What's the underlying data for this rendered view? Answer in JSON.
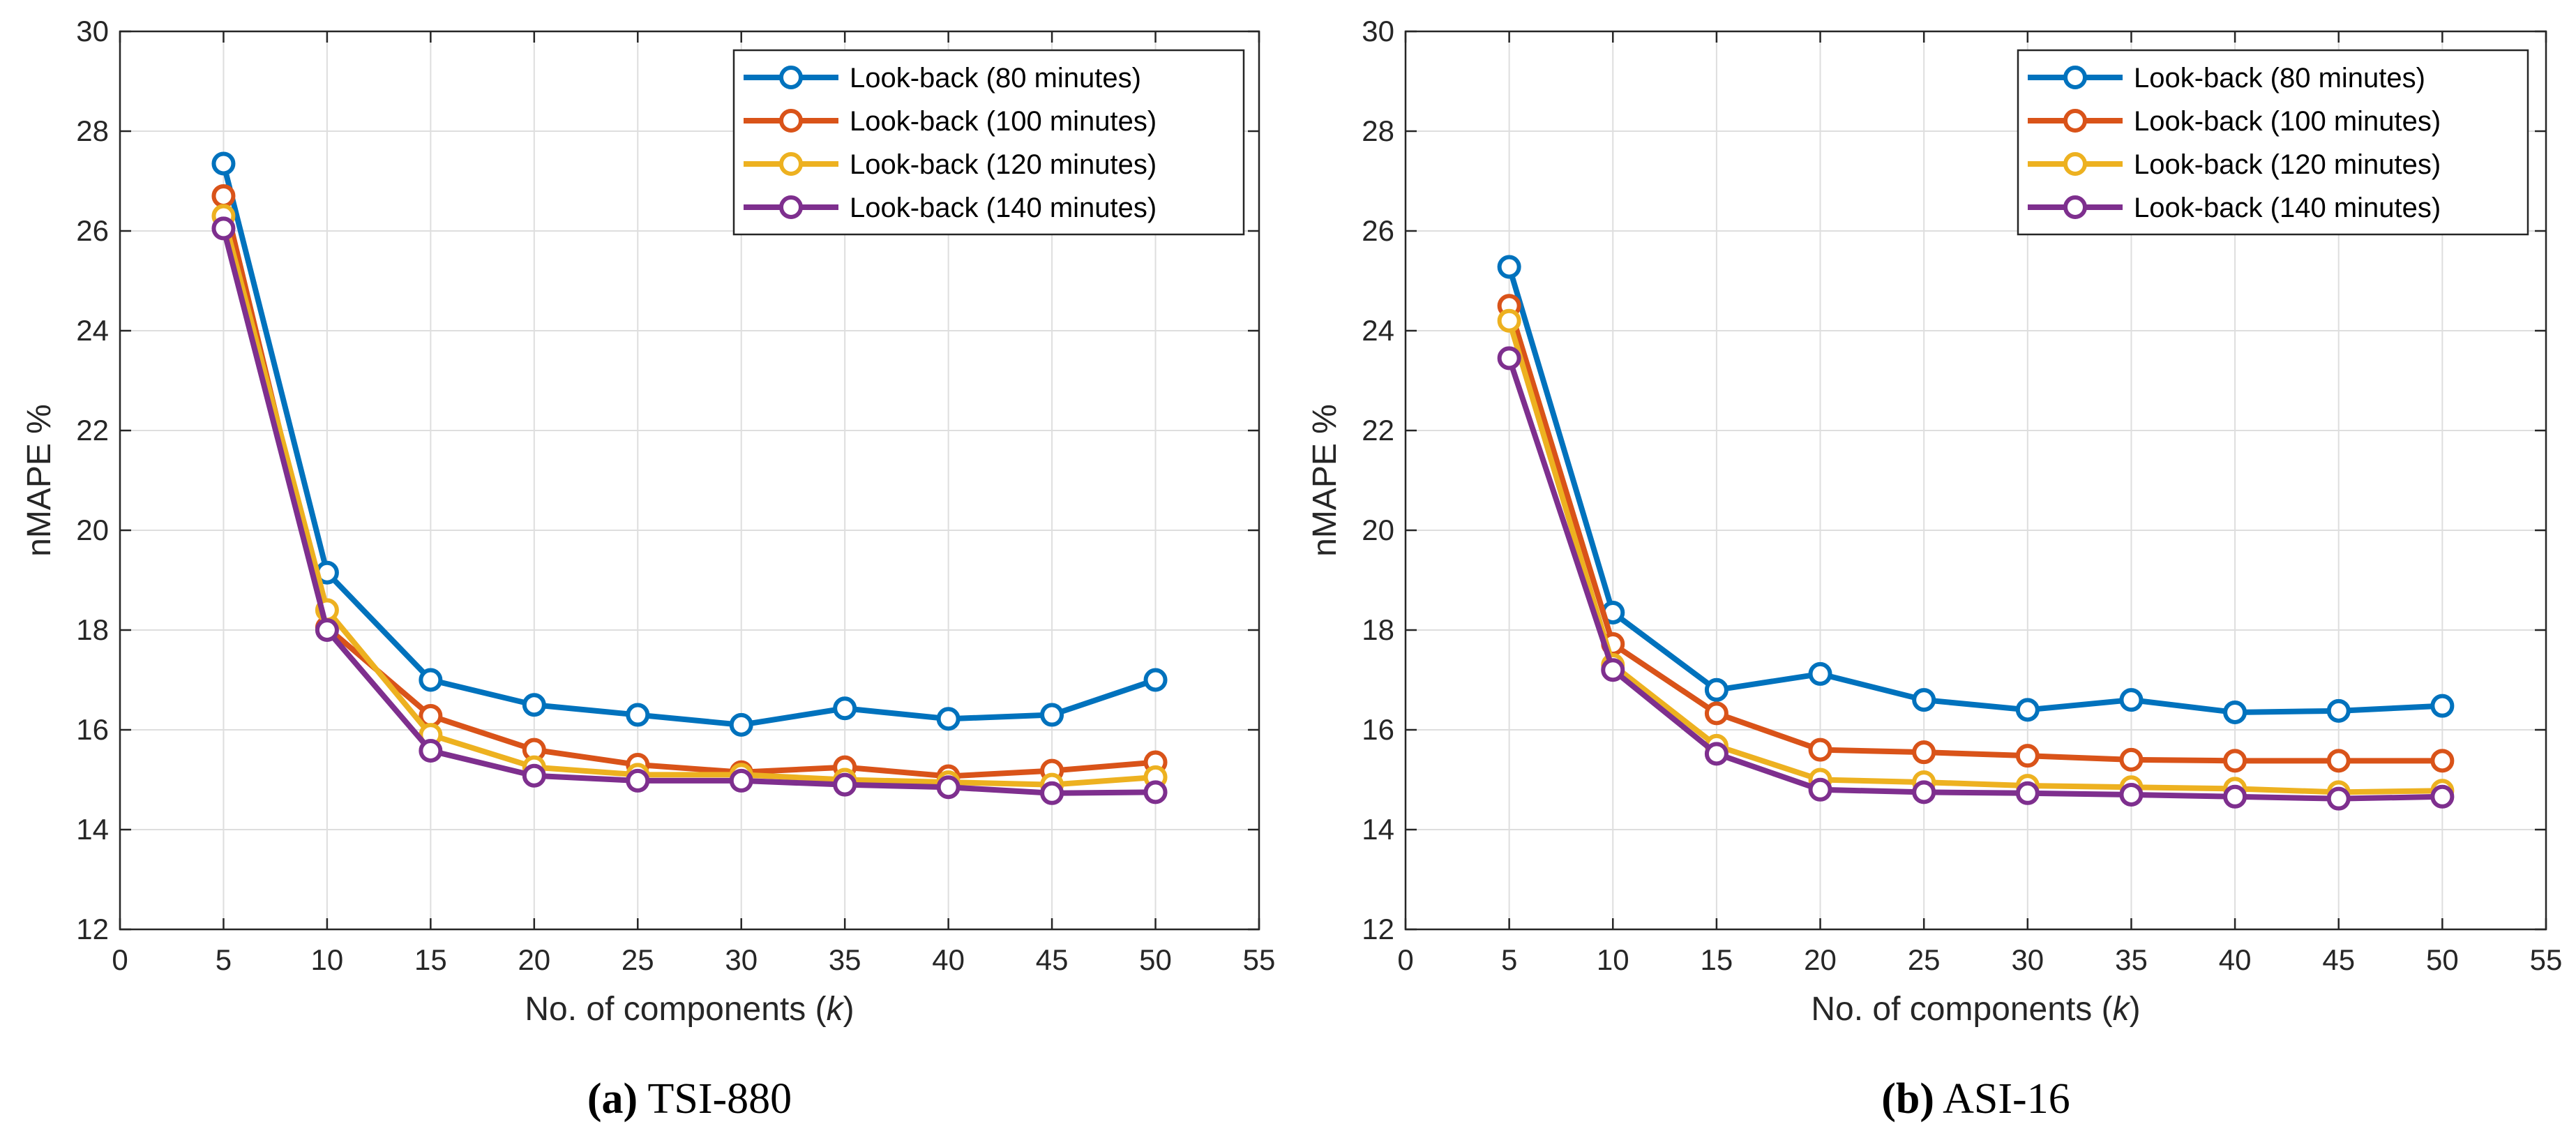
{
  "series_colors": [
    "#0072BD",
    "#D95319",
    "#EDB120",
    "#7E2F8E"
  ],
  "chart_data": [
    {
      "type": "line",
      "panel_label": "(a)",
      "panel_name": "TSI-880",
      "xlabel_prefix": "No. of components (",
      "xlabel_var": "k",
      "xlabel_suffix": ")",
      "ylabel": "nMAPE %",
      "xlim": [
        0,
        55
      ],
      "ylim": [
        12,
        30
      ],
      "xticks": [
        0,
        5,
        10,
        15,
        20,
        25,
        30,
        35,
        40,
        45,
        50,
        55
      ],
      "yticks": [
        12,
        14,
        16,
        18,
        20,
        22,
        24,
        26,
        28,
        30
      ],
      "grid": true,
      "legend_position": "top-right",
      "x": [
        5,
        10,
        15,
        20,
        25,
        30,
        35,
        40,
        45,
        50
      ],
      "series": [
        {
          "name": "Look-back (80 minutes)",
          "values": [
            27.35,
            19.15,
            17.0,
            16.5,
            16.3,
            16.1,
            16.43,
            16.22,
            16.3,
            17.0
          ]
        },
        {
          "name": "Look-back (100 minutes)",
          "values": [
            26.7,
            18.05,
            16.28,
            15.6,
            15.3,
            15.15,
            15.25,
            15.07,
            15.18,
            15.35
          ]
        },
        {
          "name": "Look-back (120 minutes)",
          "values": [
            26.3,
            18.4,
            15.9,
            15.25,
            15.1,
            15.1,
            15.0,
            14.95,
            14.9,
            15.05
          ]
        },
        {
          "name": "Look-back (140 minutes)",
          "values": [
            26.05,
            18.0,
            15.58,
            15.08,
            14.98,
            14.98,
            14.9,
            14.85,
            14.73,
            14.75
          ]
        }
      ]
    },
    {
      "type": "line",
      "panel_label": "(b)",
      "panel_name": "ASI-16",
      "xlabel_prefix": "No. of components (",
      "xlabel_var": "k",
      "xlabel_suffix": ")",
      "ylabel": "nMAPE %",
      "xlim": [
        0,
        55
      ],
      "ylim": [
        12,
        30
      ],
      "xticks": [
        0,
        5,
        10,
        15,
        20,
        25,
        30,
        35,
        40,
        45,
        50,
        55
      ],
      "yticks": [
        12,
        14,
        16,
        18,
        20,
        22,
        24,
        26,
        28,
        30
      ],
      "grid": true,
      "legend_position": "top-right",
      "x": [
        5,
        10,
        15,
        20,
        25,
        30,
        35,
        40,
        45,
        50
      ],
      "series": [
        {
          "name": "Look-back (80 minutes)",
          "values": [
            25.28,
            18.35,
            16.8,
            17.12,
            16.6,
            16.4,
            16.6,
            16.35,
            16.38,
            16.48
          ]
        },
        {
          "name": "Look-back (100 minutes)",
          "values": [
            24.5,
            17.72,
            16.33,
            15.6,
            15.55,
            15.48,
            15.4,
            15.38,
            15.38,
            15.38
          ]
        },
        {
          "name": "Look-back (120 minutes)",
          "values": [
            24.2,
            17.3,
            15.68,
            15.0,
            14.95,
            14.88,
            14.85,
            14.82,
            14.75,
            14.78
          ]
        },
        {
          "name": "Look-back (140 minutes)",
          "values": [
            23.45,
            17.2,
            15.52,
            14.8,
            14.75,
            14.73,
            14.7,
            14.66,
            14.62,
            14.66
          ]
        }
      ]
    }
  ]
}
